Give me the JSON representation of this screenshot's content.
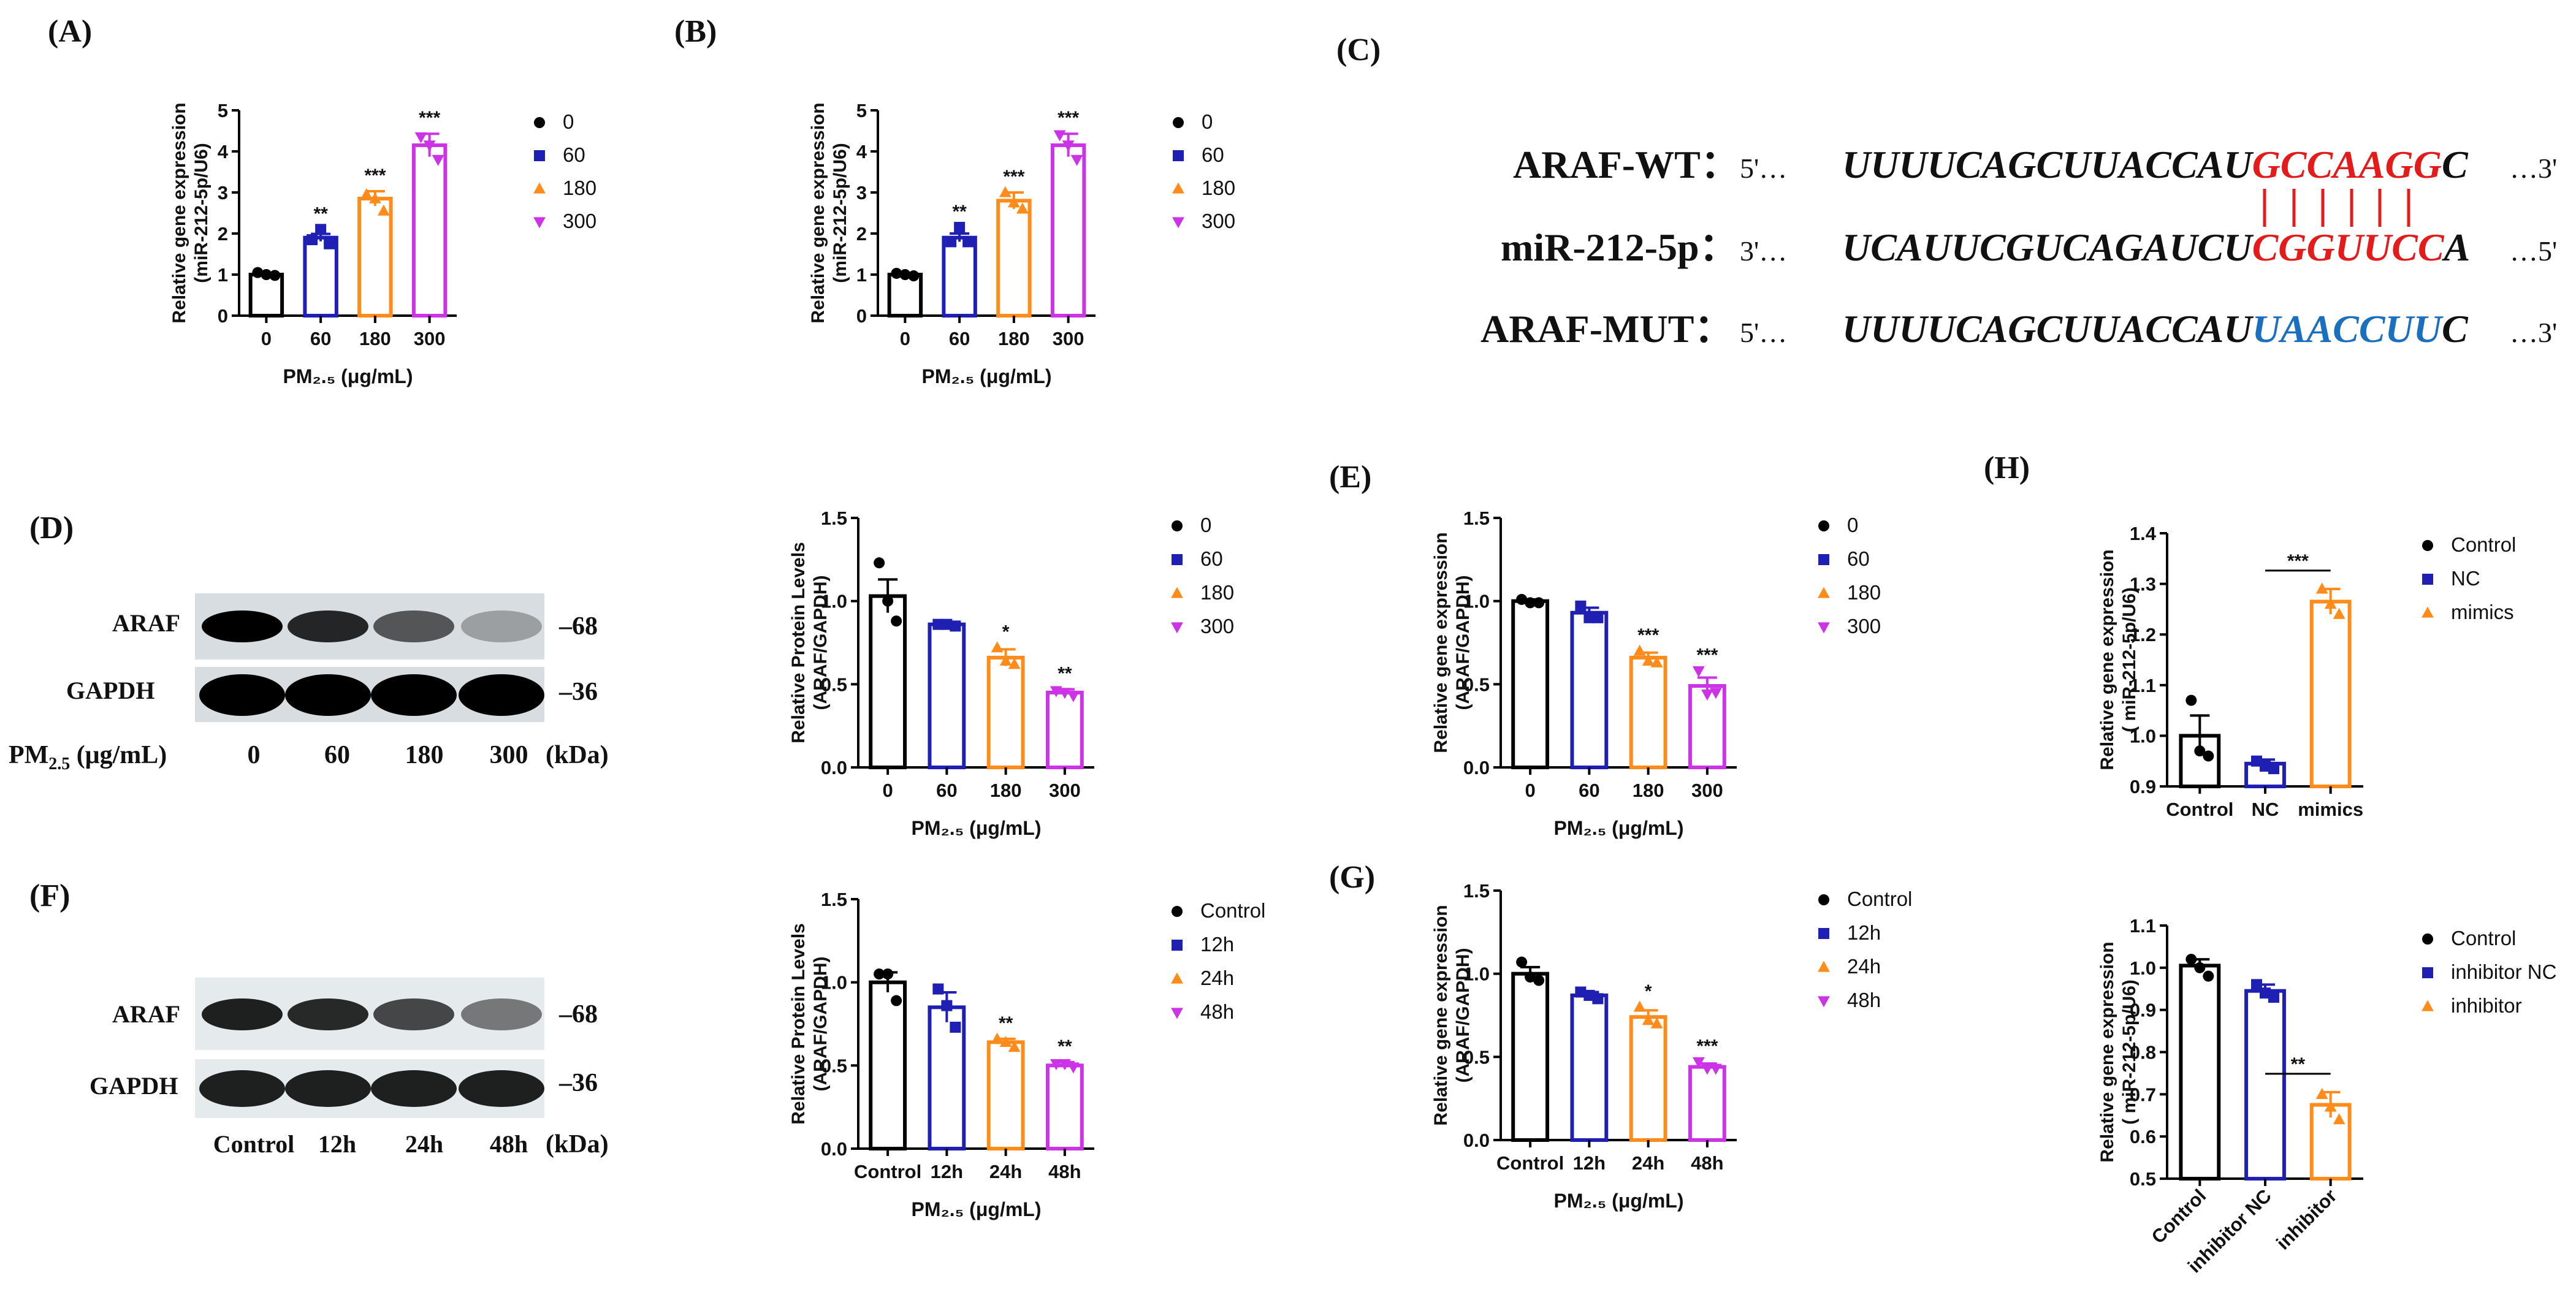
{
  "panel_labels": {
    "A": "(A)",
    "B": "(B)",
    "C": "(C)",
    "D": "(D)",
    "E": "(E)",
    "F": "(F)",
    "G": "(G)",
    "H": "(H)"
  },
  "chart_data": [
    {
      "id": "A",
      "type": "bar",
      "categories": [
        "0",
        "60",
        "180",
        "300"
      ],
      "values": [
        1.0,
        1.9,
        2.85,
        4.15
      ],
      "errors": [
        0.03,
        0.09,
        0.18,
        0.28
      ],
      "points": [
        [
          1.05,
          1.0,
          0.98
        ],
        [
          1.85,
          2.1,
          1.75
        ],
        [
          2.95,
          2.85,
          2.55
        ],
        [
          4.35,
          4.15,
          3.8
        ]
      ],
      "significance": [
        "",
        "**",
        "***",
        "***"
      ],
      "colors": [
        "#000000",
        "#1f1fb4",
        "#ff8c1a",
        "#cc33e6"
      ],
      "markers": [
        "circle",
        "square",
        "triangle-up",
        "triangle-down"
      ],
      "legend": [
        "0",
        "60",
        "180",
        "300"
      ],
      "ylim": [
        0,
        5
      ],
      "yticks": [
        "0",
        "1",
        "2",
        "3",
        "4",
        "5"
      ],
      "ylabel": [
        "Relative gene expression",
        "(miR-212-5p/U6)"
      ],
      "xlabel": "PM₂.₅ (μg/mL)"
    },
    {
      "id": "B",
      "type": "bar",
      "categories": [
        "0",
        "60",
        "180",
        "300"
      ],
      "values": [
        1.0,
        1.9,
        2.8,
        4.15
      ],
      "errors": [
        0.03,
        0.1,
        0.2,
        0.28
      ],
      "points": [
        [
          1.03,
          1.0,
          0.97
        ],
        [
          1.8,
          2.15,
          1.8
        ],
        [
          3.0,
          2.75,
          2.6
        ],
        [
          4.4,
          4.15,
          3.8
        ]
      ],
      "significance": [
        "",
        "**",
        "***",
        "***"
      ],
      "colors": [
        "#000000",
        "#1f1fb4",
        "#ff8c1a",
        "#cc33e6"
      ],
      "markers": [
        "circle",
        "square",
        "triangle-up",
        "triangle-down"
      ],
      "legend": [
        "0",
        "60",
        "180",
        "300"
      ],
      "ylim": [
        0,
        5
      ],
      "yticks": [
        "0",
        "1",
        "2",
        "3",
        "4",
        "5"
      ],
      "ylabel": [
        "Relative gene expression",
        "(miR-212-5p/U6)"
      ],
      "xlabel": "PM₂.₅ (μg/mL)"
    },
    {
      "id": "D",
      "type": "bar",
      "categories": [
        "0",
        "60",
        "180",
        "300"
      ],
      "values": [
        1.03,
        0.86,
        0.66,
        0.45
      ],
      "errors": [
        0.1,
        0.01,
        0.05,
        0.02
      ],
      "points": [
        [
          1.23,
          1.0,
          0.88
        ],
        [
          0.86,
          0.86,
          0.85
        ],
        [
          0.72,
          0.64,
          0.62
        ],
        [
          0.46,
          0.45,
          0.43
        ]
      ],
      "significance": [
        "",
        "",
        "*",
        "**"
      ],
      "colors": [
        "#000000",
        "#1f1fb4",
        "#ff8c1a",
        "#cc33e6"
      ],
      "markers": [
        "circle",
        "square",
        "triangle-up",
        "triangle-down"
      ],
      "legend": [
        "0",
        "60",
        "180",
        "300"
      ],
      "ylim": [
        0,
        1.5
      ],
      "yticks": [
        "0.0",
        "0.5",
        "1.0",
        "1.5"
      ],
      "ylabel": [
        "Relative Protein Levels",
        "(ARAF/GAPDH)"
      ],
      "xlabel": "PM₂.₅ (μg/mL)"
    },
    {
      "id": "E",
      "type": "bar",
      "categories": [
        "0",
        "60",
        "180",
        "300"
      ],
      "values": [
        1.0,
        0.93,
        0.66,
        0.49
      ],
      "errors": [
        0.01,
        0.03,
        0.03,
        0.05
      ],
      "points": [
        [
          1.01,
          0.99,
          0.99
        ],
        [
          0.97,
          0.9,
          0.9
        ],
        [
          0.7,
          0.64,
          0.63
        ],
        [
          0.58,
          0.44,
          0.45
        ]
      ],
      "significance": [
        "",
        "",
        "***",
        "***"
      ],
      "colors": [
        "#000000",
        "#1f1fb4",
        "#ff8c1a",
        "#cc33e6"
      ],
      "markers": [
        "circle",
        "square",
        "triangle-up",
        "triangle-down"
      ],
      "legend": [
        "0",
        "60",
        "180",
        "300"
      ],
      "ylim": [
        0,
        1.5
      ],
      "yticks": [
        "0.0",
        "0.5",
        "1.0",
        "1.5"
      ],
      "ylabel": [
        "Relative gene expression",
        "(ARAF/GAPDH)"
      ],
      "xlabel": "PM₂.₅ (μg/mL)"
    },
    {
      "id": "F",
      "type": "bar",
      "categories": [
        "Control",
        "12h",
        "24h",
        "48h"
      ],
      "values": [
        1.0,
        0.85,
        0.64,
        0.5
      ],
      "errors": [
        0.06,
        0.09,
        0.02,
        0.02
      ],
      "points": [
        [
          1.05,
          1.05,
          0.89
        ],
        [
          0.96,
          0.86,
          0.73
        ],
        [
          0.66,
          0.64,
          0.61
        ],
        [
          0.51,
          0.51,
          0.49
        ]
      ],
      "significance": [
        "",
        "",
        "**",
        "**"
      ],
      "colors": [
        "#000000",
        "#1f1fb4",
        "#ff8c1a",
        "#cc33e6"
      ],
      "markers": [
        "circle",
        "square",
        "triangle-up",
        "triangle-down"
      ],
      "legend": [
        "Control",
        "12h",
        "24h",
        "48h"
      ],
      "ylim": [
        0,
        1.5
      ],
      "yticks": [
        "0.0",
        "0.5",
        "1.0",
        "1.5"
      ],
      "ylabel": [
        "Relative Protein Levels",
        "(ARAF/GAPDH)"
      ],
      "xlabel": "PM₂.₅ (μg/mL)"
    },
    {
      "id": "G",
      "type": "bar",
      "categories": [
        "Control",
        "12h",
        "24h",
        "48h"
      ],
      "values": [
        1.0,
        0.87,
        0.74,
        0.44
      ],
      "errors": [
        0.04,
        0.02,
        0.04,
        0.02
      ],
      "points": [
        [
          1.07,
          0.98,
          0.96
        ],
        [
          0.89,
          0.87,
          0.85
        ],
        [
          0.8,
          0.72,
          0.7
        ],
        [
          0.47,
          0.43,
          0.43
        ]
      ],
      "significance": [
        "",
        "",
        "*",
        "***"
      ],
      "colors": [
        "#000000",
        "#1f1fb4",
        "#ff8c1a",
        "#cc33e6"
      ],
      "markers": [
        "circle",
        "square",
        "triangle-up",
        "triangle-down"
      ],
      "legend": [
        "Control",
        "12h",
        "24h",
        "48h"
      ],
      "ylim": [
        0,
        1.5
      ],
      "yticks": [
        "0.0",
        "0.5",
        "1.0",
        "1.5"
      ],
      "ylabel": [
        "Relative gene expression",
        "(ARAF/GAPDH)"
      ],
      "xlabel": "PM₂.₅ (μg/mL)"
    },
    {
      "id": "H1",
      "type": "bar",
      "categories": [
        "Control",
        "NC",
        "mimics"
      ],
      "values": [
        1.0,
        0.945,
        1.265
      ],
      "errors": [
        0.04,
        0.008,
        0.025
      ],
      "points": [
        [
          1.07,
          0.97,
          0.96
        ],
        [
          0.95,
          0.94,
          0.935
        ],
        [
          1.29,
          1.26,
          1.24
        ]
      ],
      "significance_bracket": {
        "from": 1,
        "to": 2,
        "label": "***"
      },
      "colors": [
        "#000000",
        "#1f1fb4",
        "#ff8c1a"
      ],
      "markers": [
        "circle",
        "square",
        "triangle-up"
      ],
      "legend": [
        "Control",
        "NC",
        "mimics"
      ],
      "ylim": [
        0.9,
        1.4
      ],
      "yticks": [
        "0.9",
        "1.0",
        "1.1",
        "1.2",
        "1.3",
        "1.4"
      ],
      "ylabel": [
        "Relative gene expression",
        "( miR-212-5p/U6)"
      ],
      "xlabel": ""
    },
    {
      "id": "H2",
      "type": "bar",
      "categories": [
        "Control",
        "inhibitor NC",
        "inhibitor"
      ],
      "values": [
        1.005,
        0.945,
        0.675
      ],
      "errors": [
        0.015,
        0.015,
        0.03
      ],
      "points": [
        [
          1.02,
          1.0,
          0.98
        ],
        [
          0.96,
          0.94,
          0.93
        ],
        [
          0.7,
          0.67,
          0.64
        ]
      ],
      "significance_bracket": {
        "from": 1,
        "to": 2,
        "label": "**"
      },
      "colors": [
        "#000000",
        "#1f1fb4",
        "#ff8c1a"
      ],
      "markers": [
        "circle",
        "square",
        "triangle-up"
      ],
      "legend": [
        "Control",
        "inhibitor NC",
        "inhibitor"
      ],
      "ylim": [
        0.5,
        1.1
      ],
      "yticks": [
        "0.5",
        "0.6",
        "0.7",
        "0.8",
        "0.9",
        "1.0",
        "1.1"
      ],
      "ylabel": [
        "Relative gene expression",
        "( miR-212-5p/U6)"
      ],
      "xlabel": ""
    }
  ],
  "sequences": {
    "wt": {
      "name": "ARAF-WT：",
      "start": "5'…",
      "black": "UUUUCAGCUUACCAU",
      "colored": "GCCAAGG",
      "tail": "C",
      "end": "…3'"
    },
    "mir": {
      "name": "miR-212-5p：",
      "start": "3'…",
      "black": "UCAUUCGUCAGAUCU",
      "colored": "CGGUUCC",
      "tail": "A",
      "end": "…5'"
    },
    "mut": {
      "name": "ARAF-MUT：",
      "start": "5'…",
      "black": "UUUUCAGCUUACCAU",
      "colored": "UAACCUU",
      "tail": "C",
      "end": "…3'"
    },
    "pair_color": "#e31b1b",
    "mut_color": "#1a6fbf"
  },
  "blots": {
    "D": {
      "proteins": [
        "ARAF",
        "GAPDH"
      ],
      "markers": [
        "–68",
        "–36"
      ],
      "lanes": [
        "0",
        "60",
        "180",
        "300"
      ],
      "lane_label_parts": [
        "PM",
        "2.5",
        "  (μg/mL)"
      ],
      "unit": "(kDa)",
      "araf_intensity": [
        1.0,
        0.8,
        0.55,
        0.15
      ],
      "gapdh_intensity": [
        1.0,
        1.0,
        1.0,
        1.0
      ]
    },
    "F": {
      "proteins": [
        "ARAF",
        "GAPDH"
      ],
      "markers": [
        "–68",
        "–36"
      ],
      "lanes": [
        "Control",
        "12h",
        "24h",
        "48h"
      ],
      "unit": "(kDa)",
      "araf_intensity": [
        0.85,
        0.8,
        0.65,
        0.4
      ],
      "gapdh_intensity": [
        0.85,
        0.85,
        0.85,
        0.85
      ]
    }
  }
}
